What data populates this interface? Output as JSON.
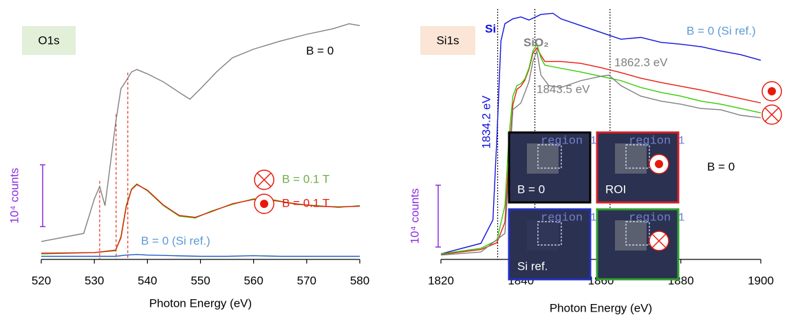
{
  "chart_data": [
    {
      "type": "line",
      "panel_label": "O1s",
      "panel_color": "#e2efd9",
      "x_label": "Photon  Energy (eV)",
      "xlim": [
        520,
        580
      ],
      "xticks": [
        520,
        530,
        540,
        550,
        560,
        570,
        580
      ],
      "ylim": [
        0,
        4.05
      ],
      "scale_bar": {
        "label": "10⁴ counts",
        "range": [
          0.53,
          1.53
        ],
        "color": "#8a2be2"
      },
      "vlines": {
        "color": "#e8190c",
        "x": [
          531,
          534.1,
          536.3
        ]
      },
      "series": [
        {
          "name": "B = 0",
          "color": "#7f7f7f",
          "x": [
            520,
            528,
            530,
            531,
            532,
            533,
            534,
            535,
            536,
            537,
            538,
            540,
            543,
            546,
            548,
            550,
            553,
            556,
            560,
            565,
            570,
            575,
            578,
            580
          ],
          "values": [
            0.29,
            0.42,
            0.98,
            1.18,
            0.87,
            1.53,
            2.2,
            2.76,
            2.89,
            3.03,
            3.07,
            3.0,
            2.87,
            2.7,
            2.59,
            2.76,
            3.03,
            3.26,
            3.4,
            3.53,
            3.64,
            3.73,
            3.81,
            3.78
          ]
        },
        {
          "name": "B = 0.1 T",
          "color": "#33cc00",
          "x": [
            520,
            530,
            534,
            535,
            536,
            537,
            538,
            540,
            543,
            546,
            549,
            552,
            556,
            560,
            564,
            568,
            572,
            576,
            580
          ],
          "values": [
            0.09,
            0.11,
            0.14,
            0.37,
            0.87,
            1.14,
            1.22,
            1.11,
            0.87,
            0.7,
            0.67,
            0.78,
            0.89,
            0.98,
            0.96,
            0.89,
            0.87,
            0.84,
            0.87
          ]
        },
        {
          "name": "B = 0.1 T",
          "color": "#e8190c",
          "x": [
            520,
            530,
            534,
            535,
            536,
            537,
            538,
            540,
            543,
            546,
            549,
            552,
            556,
            560,
            564,
            568,
            572,
            576,
            580
          ],
          "values": [
            0.1,
            0.11,
            0.15,
            0.35,
            0.85,
            1.13,
            1.21,
            1.12,
            0.88,
            0.71,
            0.68,
            0.77,
            0.9,
            0.97,
            0.95,
            0.9,
            0.86,
            0.85,
            0.86
          ]
        },
        {
          "name": "B = 0 (Si ref.)",
          "color": "#1f5fbf",
          "x": [
            520,
            530,
            534,
            536,
            538,
            540,
            545,
            550,
            555,
            560,
            565,
            570,
            575,
            580
          ],
          "values": [
            0.05,
            0.05,
            0.05,
            0.07,
            0.08,
            0.07,
            0.06,
            0.05,
            0.05,
            0.06,
            0.05,
            0.05,
            0.05,
            0.05
          ]
        }
      ]
    },
    {
      "type": "line",
      "panel_label": "Si1s",
      "panel_color": "#fbe5d6",
      "x_label": "Photon Energy (eV)",
      "xlim": [
        1820,
        1900
      ],
      "xticks": [
        1820,
        1840,
        1860,
        1880,
        1900
      ],
      "ylim": [
        0,
        4.05
      ],
      "scale_bar": {
        "label": "10⁴ counts",
        "range": [
          0.2,
          1.2
        ],
        "color": "#8a2be2"
      },
      "vlines": {
        "color": "#000000",
        "x": [
          1834.2,
          1843.5,
          1862.3
        ]
      },
      "annotations": [
        "Si",
        "SiO₂",
        "1862.3 eV",
        "1843.5 eV",
        "1834.2 eV"
      ],
      "insets": [
        {
          "tag": "region 1",
          "label": "B = 0"
        },
        {
          "tag": "region 1",
          "label": "ROI"
        },
        {
          "tag": "region 1",
          "label": "Si ref."
        },
        {
          "tag": "region 1"
        }
      ],
      "series": [
        {
          "name": "B = 0 (Si ref.)",
          "color": "#1010e0",
          "x": [
            1820,
            1830,
            1833,
            1834,
            1835,
            1836,
            1838,
            1840,
            1842,
            1845,
            1848,
            1850,
            1855,
            1860,
            1865,
            1870,
            1875,
            1880,
            1885,
            1890,
            1895,
            1900
          ],
          "values": [
            0.09,
            0.26,
            0.64,
            1.98,
            3.53,
            3.81,
            3.89,
            3.92,
            3.87,
            3.96,
            3.98,
            3.89,
            3.78,
            3.67,
            3.56,
            3.59,
            3.51,
            3.48,
            3.44,
            3.37,
            3.31,
            3.22
          ]
        },
        {
          "color": "#e8190c",
          "x": [
            1820,
            1830,
            1834,
            1836,
            1837,
            1838,
            1839,
            1840,
            1841,
            1842,
            1843,
            1844,
            1845,
            1846,
            1850,
            1855,
            1860,
            1865,
            1870,
            1875,
            1880,
            1885,
            1890,
            1895,
            1900
          ],
          "values": [
            0.08,
            0.16,
            0.27,
            0.6,
            1.64,
            2.5,
            2.75,
            2.8,
            2.9,
            3.07,
            3.33,
            3.42,
            3.3,
            3.2,
            3.2,
            3.17,
            3.1,
            3.02,
            2.93,
            2.86,
            2.8,
            2.74,
            2.67,
            2.6,
            2.53
          ]
        },
        {
          "color": "#33cc00",
          "x": [
            1820,
            1830,
            1834,
            1836,
            1837,
            1838,
            1839,
            1840,
            1841,
            1842,
            1843,
            1844,
            1845,
            1846,
            1850,
            1855,
            1860,
            1865,
            1870,
            1875,
            1880,
            1885,
            1890,
            1895,
            1900
          ],
          "values": [
            0.09,
            0.18,
            0.31,
            0.87,
            1.98,
            2.64,
            2.81,
            2.84,
            2.92,
            3.09,
            3.37,
            3.48,
            3.26,
            3.14,
            3.09,
            3.03,
            2.96,
            2.89,
            2.78,
            2.7,
            2.64,
            2.56,
            2.51,
            2.44,
            2.37
          ]
        },
        {
          "name": "B = 0",
          "color": "#7f7f7f",
          "x": [
            1820,
            1830,
            1836,
            1838,
            1840,
            1842,
            1843,
            1844,
            1845,
            1847,
            1850,
            1855,
            1860,
            1862,
            1865,
            1870,
            1875,
            1880,
            1885,
            1890,
            1895,
            1900
          ],
          "values": [
            0.07,
            0.12,
            0.42,
            2.42,
            2.53,
            2.87,
            3.2,
            3.37,
            2.98,
            2.81,
            2.78,
            2.89,
            2.96,
            2.98,
            2.81,
            2.64,
            2.56,
            2.51,
            2.44,
            2.42,
            2.33,
            2.29
          ]
        }
      ]
    }
  ]
}
